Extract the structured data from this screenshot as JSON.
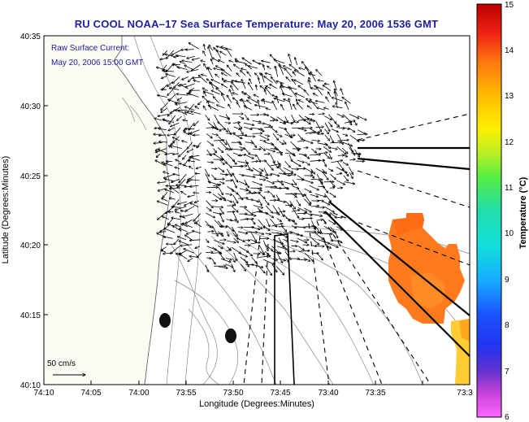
{
  "title": "RU COOL  NOAA–17  Sea Surface Temperature:  May 20, 2006 1536 GMT",
  "annotation": {
    "line1": "Raw Surface Current:",
    "line2": "May 20, 2006 15:00 GMT"
  },
  "scale_label": "50 cm/s",
  "x_axis": {
    "label": "Longitude (Degrees:Minutes)",
    "ticks": [
      "74:10",
      "74:05",
      "74:00",
      "73:55",
      "73:50",
      "73:45",
      "73:40",
      "73:35",
      "73:3"
    ]
  },
  "y_axis": {
    "label": "Latitude (Degrees:Minutes)",
    "ticks": [
      "40:35",
      "40:30",
      "40:25",
      "40:20",
      "40:15",
      "40:10"
    ]
  },
  "colorbar": {
    "label": "Temperature (°C)",
    "ticks": [
      "15",
      "14",
      "13",
      "12",
      "11",
      "10",
      "9",
      "8",
      "7",
      "6"
    ],
    "range": [
      6,
      15
    ]
  },
  "colors": {
    "title": "#1b1fa0",
    "land": "#fdfdf5",
    "sst_patch": "#ff7a1e",
    "sst_strip": "#ffcc33",
    "vectors": "#000000"
  }
}
